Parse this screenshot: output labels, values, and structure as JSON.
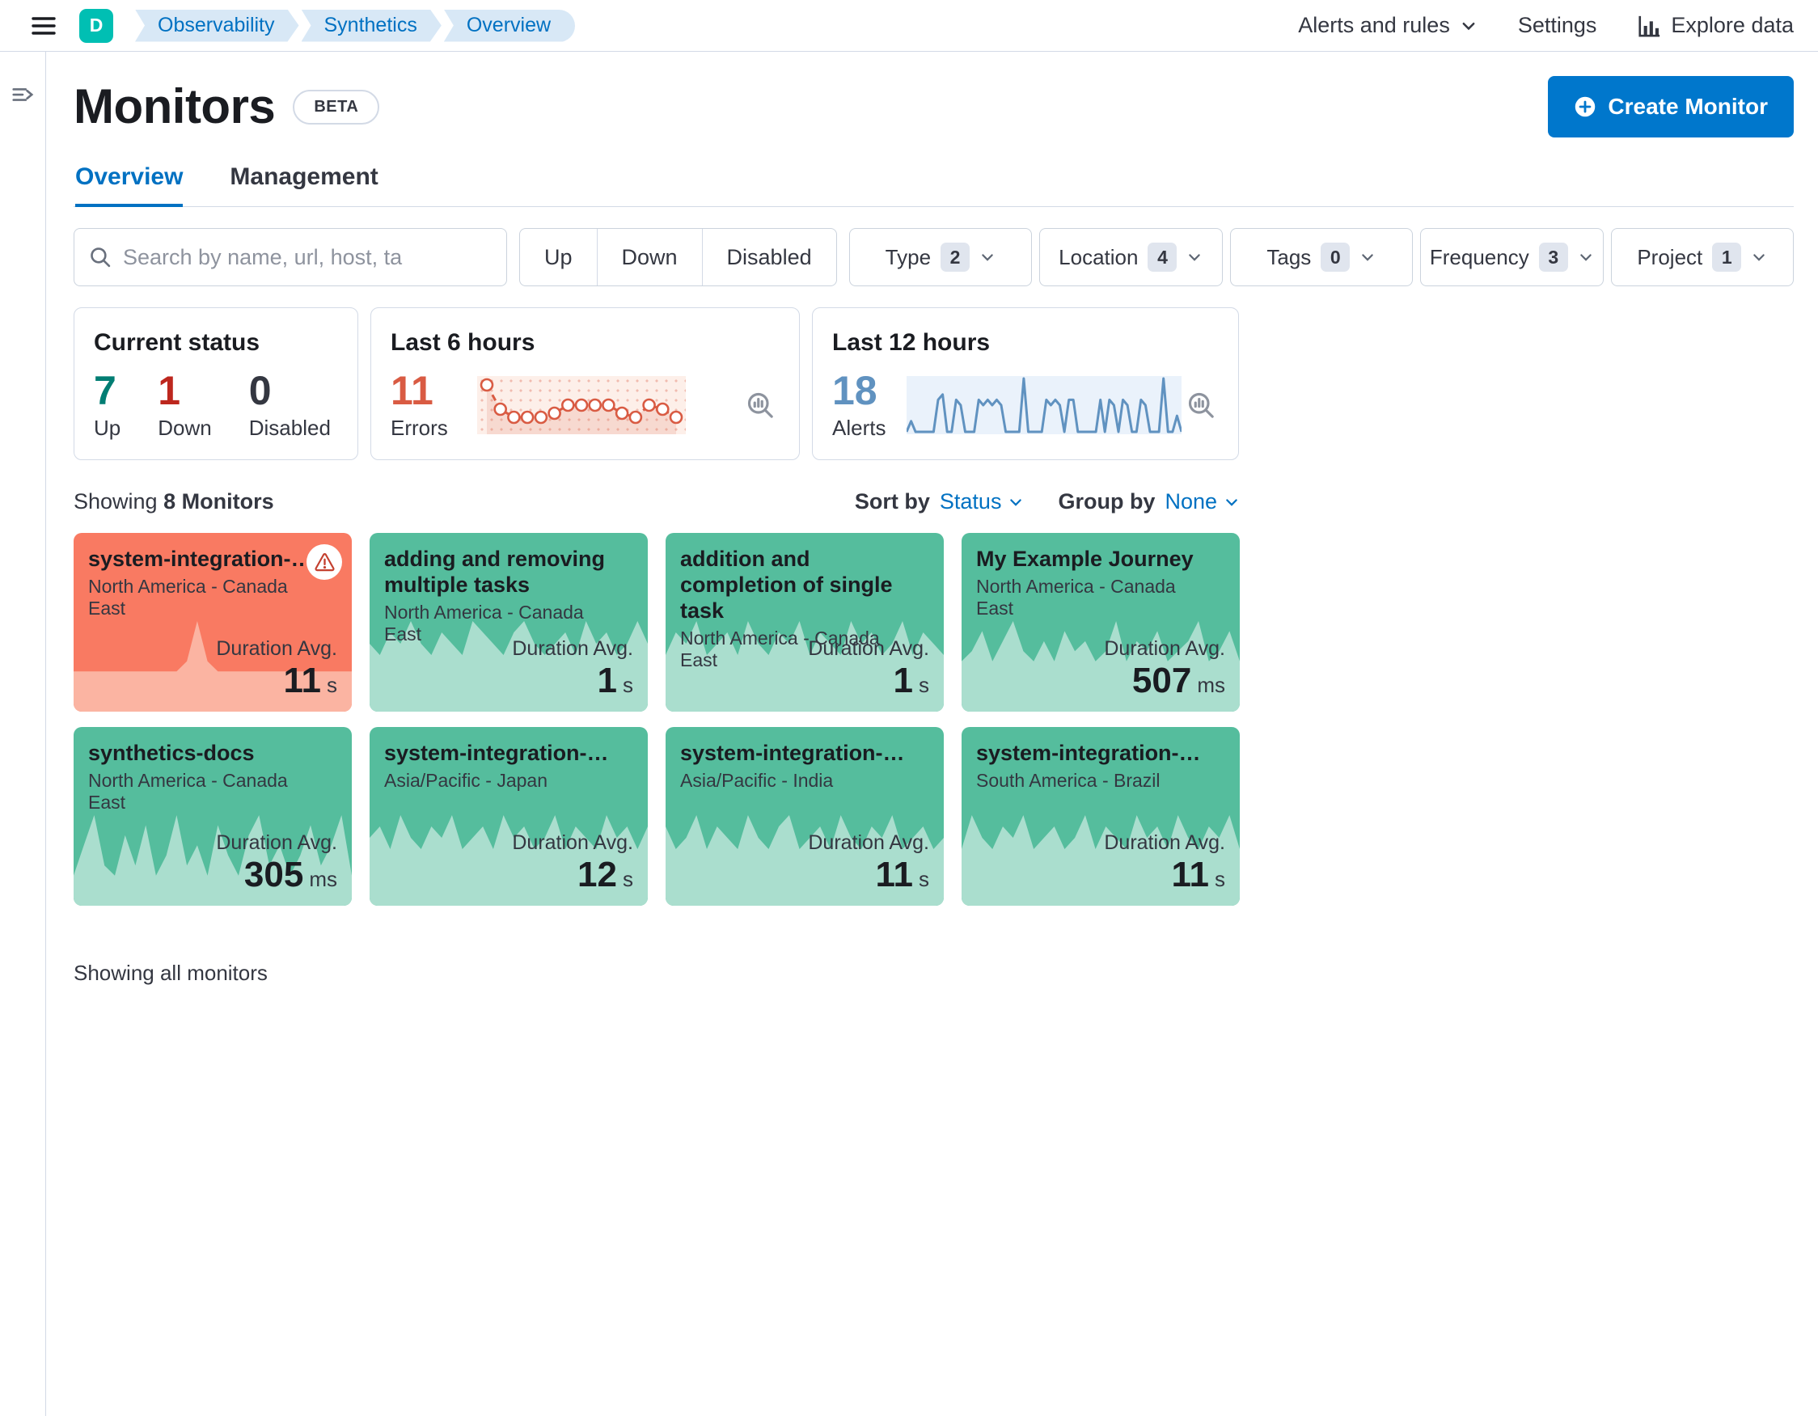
{
  "header": {
    "space_initial": "D",
    "breadcrumbs": [
      {
        "label": "Observability"
      },
      {
        "label": "Synthetics"
      },
      {
        "label": "Overview"
      }
    ],
    "alerts_menu": "Alerts and rules",
    "settings": "Settings",
    "explore_data": "Explore data"
  },
  "page": {
    "title": "Monitors",
    "beta_badge": "BETA",
    "create_button": "Create Monitor",
    "tabs": [
      {
        "label": "Overview"
      },
      {
        "label": "Management"
      }
    ],
    "showing_prefix": "Showing",
    "showing_count": "8 Monitors",
    "sort_by_label": "Sort by",
    "sort_by_value": "Status",
    "group_by_label": "Group by",
    "group_by_value": "None",
    "footer_note": "Showing all monitors"
  },
  "filters": {
    "search_placeholder": "Search by name, url, host, ta",
    "status_buttons": [
      {
        "label": "Up"
      },
      {
        "label": "Down"
      },
      {
        "label": "Disabled"
      }
    ],
    "dropdowns": [
      {
        "label": "Type",
        "count": "2"
      },
      {
        "label": "Location",
        "count": "4"
      },
      {
        "label": "Tags",
        "count": "0"
      },
      {
        "label": "Frequency",
        "count": "3"
      },
      {
        "label": "Project",
        "count": "1"
      }
    ]
  },
  "stats": {
    "current_status": {
      "title": "Current status",
      "items": [
        {
          "value": "7",
          "label": "Up"
        },
        {
          "value": "1",
          "label": "Down"
        },
        {
          "value": "0",
          "label": "Disabled"
        }
      ]
    },
    "last_6_hours": {
      "title": "Last 6 hours",
      "value": "11",
      "label": "Errors"
    },
    "last_12_hours": {
      "title": "Last 12 hours",
      "value": "18",
      "label": "Alerts"
    }
  },
  "chart_data": [
    {
      "id": "errors-last-6-hours",
      "type": "line",
      "title": "Last 6 hours",
      "series_name": "Errors",
      "style": "dashed-line-open-markers",
      "color": "#d95b43",
      "values": [
        10,
        4,
        2,
        2,
        2,
        3,
        5,
        5,
        5,
        5,
        3,
        2,
        5,
        4,
        2
      ]
    },
    {
      "id": "alerts-last-12-hours",
      "type": "line",
      "title": "Last 12 hours",
      "series_name": "Alerts",
      "style": "spiky-line",
      "color": "#6092c0",
      "values": [
        0,
        2,
        0,
        0,
        0,
        0,
        0,
        6,
        7,
        0,
        0,
        6,
        5,
        0,
        0,
        0,
        6,
        5,
        6,
        5,
        6,
        5,
        0,
        0,
        0,
        0,
        10,
        0,
        0,
        0,
        0,
        6,
        5,
        6,
        5,
        0,
        6,
        6,
        0,
        0,
        0,
        0,
        0,
        6,
        0,
        6,
        5,
        0,
        6,
        5,
        0,
        0,
        6,
        5,
        0,
        0,
        0,
        10,
        0,
        0,
        3,
        0
      ]
    }
  ],
  "monitors": {
    "duration_label": "Duration Avg.",
    "cards": [
      {
        "title": "system-integration-…",
        "location": "North America - Canada East",
        "duration": "11",
        "unit": "s",
        "status": "down",
        "spark": [
          4,
          4,
          4,
          4,
          4,
          4,
          4,
          4,
          4,
          4,
          4,
          5,
          9,
          5,
          4,
          4,
          4,
          4,
          4,
          4,
          4,
          4,
          4,
          4,
          4,
          4,
          4,
          4
        ]
      },
      {
        "title": "adding and removing multiple tasks",
        "location": "North America - Canada East",
        "duration": "1",
        "unit": "s",
        "status": "up",
        "spark": [
          6,
          5,
          7,
          6,
          8,
          6,
          5,
          7,
          6,
          5,
          8,
          7,
          6,
          5,
          7,
          8,
          6,
          5,
          6,
          7,
          5,
          8,
          6,
          7,
          5,
          6,
          8,
          6
        ]
      },
      {
        "title": "addition and completion of single task",
        "location": "North America - Canada East",
        "duration": "1",
        "unit": "s",
        "status": "up",
        "spark": [
          5,
          7,
          6,
          8,
          5,
          6,
          7,
          5,
          8,
          6,
          5,
          7,
          6,
          8,
          5,
          7,
          6,
          5,
          8,
          6,
          7,
          5,
          6,
          8,
          5,
          7,
          6,
          5
        ]
      },
      {
        "title": "My Example Journey",
        "location": "North America - Canada East",
        "duration": "507",
        "unit": "ms",
        "status": "up",
        "spark": [
          5,
          6,
          8,
          5,
          7,
          9,
          6,
          5,
          7,
          5,
          8,
          6,
          7,
          5,
          6,
          9,
          5,
          7,
          6,
          8,
          5,
          6,
          7,
          9,
          5,
          6,
          8,
          5
        ]
      },
      {
        "title": "synthetics-docs",
        "location": "North America - Canada East",
        "duration": "305",
        "unit": "ms",
        "status": "up",
        "spark": [
          3,
          6,
          9,
          4,
          3,
          7,
          4,
          8,
          3,
          5,
          9,
          4,
          6,
          3,
          8,
          5,
          3,
          7,
          9,
          4,
          6,
          3,
          5,
          8,
          4,
          6,
          9,
          3
        ]
      },
      {
        "title": "system-integration-…",
        "location": "Asia/Pacific - Japan",
        "duration": "12",
        "unit": "s",
        "status": "up",
        "spark": [
          6,
          7,
          5,
          8,
          6,
          5,
          7,
          6,
          8,
          5,
          6,
          7,
          5,
          8,
          6,
          7,
          5,
          6,
          8,
          5,
          7,
          6,
          5,
          8,
          6,
          7,
          5,
          7
        ]
      },
      {
        "title": "system-integration-…",
        "location": "Asia/Pacific - India",
        "duration": "11",
        "unit": "s",
        "status": "up",
        "spark": [
          7,
          5,
          6,
          8,
          5,
          7,
          6,
          5,
          8,
          6,
          5,
          7,
          8,
          5,
          6,
          7,
          5,
          8,
          6,
          5,
          7,
          6,
          8,
          5,
          6,
          7,
          5,
          6
        ]
      },
      {
        "title": "system-integration-…",
        "location": "South America - Brazil",
        "duration": "11",
        "unit": "s",
        "status": "up",
        "spark": [
          5,
          8,
          6,
          5,
          7,
          6,
          8,
          5,
          6,
          7,
          5,
          6,
          8,
          5,
          7,
          6,
          5,
          8,
          6,
          7,
          5,
          8,
          6,
          5,
          7,
          6,
          8,
          5
        ]
      }
    ]
  },
  "colors": {
    "primary_blue": "#0077cc",
    "link_blue": "#0071c2",
    "success_green": "#017d73",
    "danger_red": "#bd271e",
    "errors_orange": "#d95b43",
    "alerts_blue": "#6092c0",
    "card_up_green": "#55bd9d",
    "card_down_red": "#f97a62",
    "avatar_teal": "#00bfb3"
  }
}
